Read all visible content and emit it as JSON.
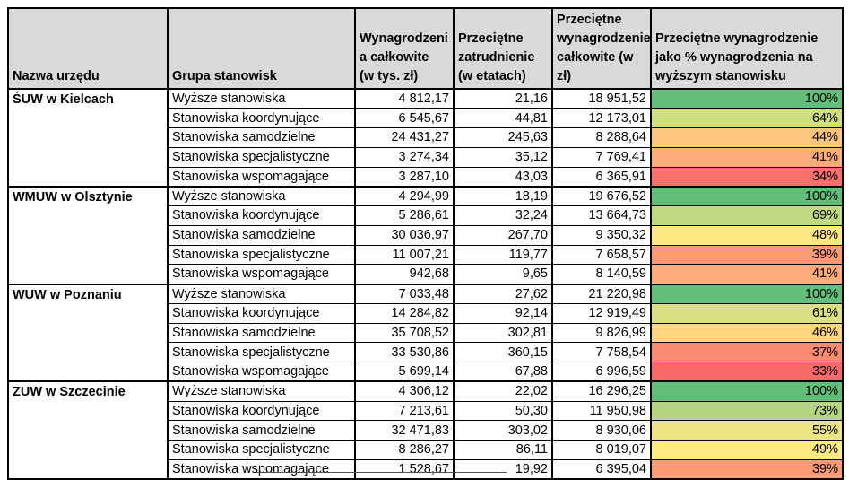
{
  "colors": {
    "header_bg": "#D9D9D9",
    "grid_border": "#000000",
    "scale_max_green": "#63BE7B",
    "scale_mid_yellow": "#FFEB84",
    "scale_min_red": "#F8696B"
  },
  "table": {
    "headers": [
      {
        "id": "office",
        "label": "Nazwa urzędu"
      },
      {
        "id": "group",
        "label": "Grupa stanowisk"
      },
      {
        "id": "total",
        "label": "Wynagrodzeni\na całkowite\n(w tys. zł)"
      },
      {
        "id": "fte",
        "label": "Przeciętne\nzatrudnienie\n(w etatach)"
      },
      {
        "id": "avg",
        "label": "Przeciętne\nwynagrodzenie\ncałkowite (w zł)"
      },
      {
        "id": "pct",
        "label": "Przeciętne wynagrodzenie\njako % wynagrodzenia na\nwyższym stanowisku"
      }
    ],
    "groups": [
      {
        "office": "ŚUW w Kielcach",
        "rows": [
          {
            "position_group": "Wyższe stanowiska",
            "total_thousand_pln": "4 812,17",
            "avg_fte": "21,16",
            "avg_salary_pln": "18 951,52",
            "pct_of_higher": "100%",
            "pct_bg": "#63BE7B"
          },
          {
            "position_group": "Stanowiska koordynujące",
            "total_thousand_pln": "6 545,67",
            "avg_fte": "44,81",
            "avg_salary_pln": "12 173,01",
            "pct_of_higher": "64%",
            "pct_bg": "#D0DD81"
          },
          {
            "position_group": "Stanowiska samodzielne",
            "total_thousand_pln": "24 431,27",
            "avg_fte": "245,63",
            "avg_salary_pln": "8 288,64",
            "pct_of_higher": "44%",
            "pct_bg": "#FDC57D"
          },
          {
            "position_group": "Stanowiska specjalistyczne",
            "total_thousand_pln": "3 274,34",
            "avg_fte": "35,12",
            "avg_salary_pln": "7 769,41",
            "pct_of_higher": "41%",
            "pct_bg": "#FCAC78"
          },
          {
            "position_group": "Stanowiska wspomagające",
            "total_thousand_pln": "3 287,10",
            "avg_fte": "43,03",
            "avg_salary_pln": "6 365,91",
            "pct_of_higher": "34%",
            "pct_bg": "#F8716D"
          }
        ]
      },
      {
        "office": "WMUW w Olsztynie",
        "rows": [
          {
            "position_group": "Wyższe stanowiska",
            "total_thousand_pln": "4 294,99",
            "avg_fte": "18,19",
            "avg_salary_pln": "19 676,52",
            "pct_of_higher": "100%",
            "pct_bg": "#63BE7B"
          },
          {
            "position_group": "Stanowiska koordynujące",
            "total_thousand_pln": "5 286,61",
            "avg_fte": "32,24",
            "avg_salary_pln": "13 664,73",
            "pct_of_higher": "69%",
            "pct_bg": "#C1D980"
          },
          {
            "position_group": "Stanowiska samodzielne",
            "total_thousand_pln": "30 036,97",
            "avg_fte": "267,70",
            "avg_salary_pln": "9 350,32",
            "pct_of_higher": "48%",
            "pct_bg": "#FFE783"
          },
          {
            "position_group": "Stanowiska specjalistyczne",
            "total_thousand_pln": "11 007,21",
            "avg_fte": "119,77",
            "avg_salary_pln": "7 658,57",
            "pct_of_higher": "39%",
            "pct_bg": "#FB9B75"
          },
          {
            "position_group": "Stanowiska wspomagające",
            "total_thousand_pln": "942,68",
            "avg_fte": "9,65",
            "avg_salary_pln": "8 140,59",
            "pct_of_higher": "41%",
            "pct_bg": "#FCAC78"
          }
        ]
      },
      {
        "office": "WUW w Poznaniu",
        "rows": [
          {
            "position_group": "Wyższe stanowiska",
            "total_thousand_pln": "7 033,48",
            "avg_fte": "27,62",
            "avg_salary_pln": "21 220,98",
            "pct_of_higher": "100%",
            "pct_bg": "#63BE7B"
          },
          {
            "position_group": "Stanowiska koordynujące",
            "total_thousand_pln": "14 284,82",
            "avg_fte": "92,14",
            "avg_salary_pln": "12 919,49",
            "pct_of_higher": "61%",
            "pct_bg": "#D9E082"
          },
          {
            "position_group": "Stanowiska samodzielne",
            "total_thousand_pln": "35 708,52",
            "avg_fte": "302,81",
            "avg_salary_pln": "9 826,99",
            "pct_of_higher": "46%",
            "pct_bg": "#FED680"
          },
          {
            "position_group": "Stanowiska specjalistyczne",
            "total_thousand_pln": "33 530,86",
            "avg_fte": "360,15",
            "avg_salary_pln": "7 758,54",
            "pct_of_higher": "37%",
            "pct_bg": "#FA8A71"
          },
          {
            "position_group": "Stanowiska wspomagające",
            "total_thousand_pln": "5 699,14",
            "avg_fte": "67,88",
            "avg_salary_pln": "6 996,59",
            "pct_of_higher": "33%",
            "pct_bg": "#F8696B"
          }
        ]
      },
      {
        "office": "ZUW w Szczecinie",
        "rows": [
          {
            "position_group": "Wyższe stanowiska",
            "total_thousand_pln": "4 306,12",
            "avg_fte": "22,02",
            "avg_salary_pln": "16 296,25",
            "pct_of_higher": "100%",
            "pct_bg": "#63BE7B"
          },
          {
            "position_group": "Stanowiska koordynujące",
            "total_thousand_pln": "7 213,61",
            "avg_fte": "50,30",
            "avg_salary_pln": "11 950,98",
            "pct_of_higher": "73%",
            "pct_bg": "#B5D57F"
          },
          {
            "position_group": "Stanowiska samodzielne",
            "total_thousand_pln": "32 471,83",
            "avg_fte": "303,02",
            "avg_salary_pln": "8 930,06",
            "pct_of_higher": "55%",
            "pct_bg": "#EBE583"
          },
          {
            "position_group": "Stanowiska specjalistyczne",
            "total_thousand_pln": "8 286,27",
            "avg_fte": "86,11",
            "avg_salary_pln": "8 019,07",
            "pct_of_higher": "49%",
            "pct_bg": "#FEEB84"
          },
          {
            "position_group": "Stanowiska wspomagające",
            "total_thousand_pln": "1 528,67",
            "avg_fte": "19,92",
            "avg_salary_pln": "6 395,04",
            "pct_of_higher": "39%",
            "pct_bg": "#FB9B75"
          }
        ]
      }
    ]
  }
}
